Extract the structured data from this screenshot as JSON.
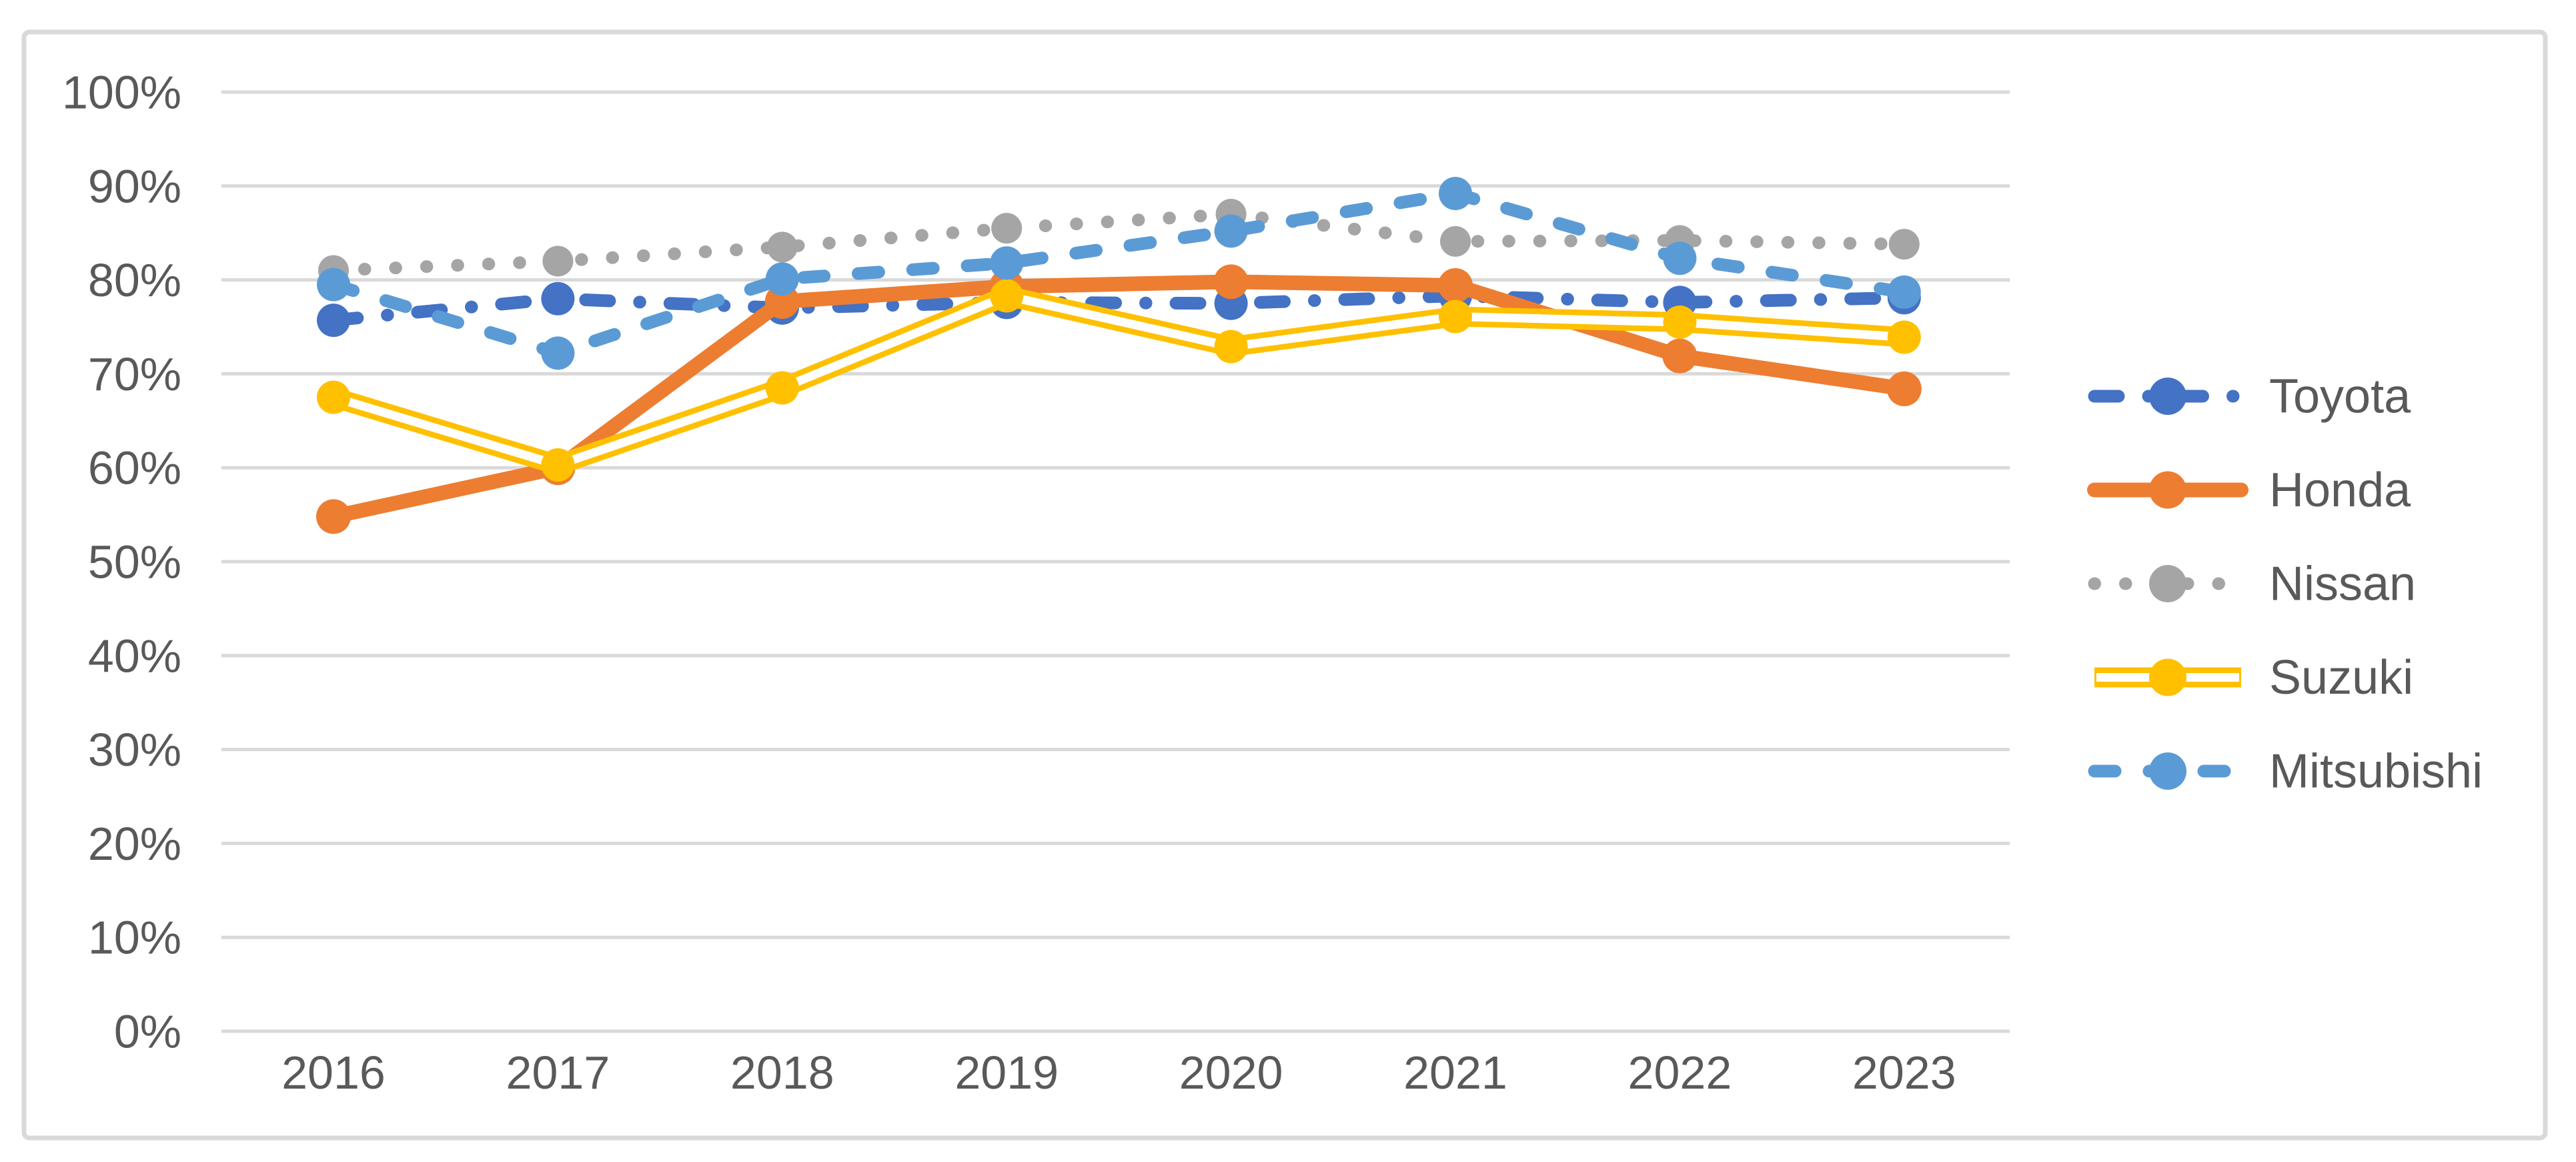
{
  "chart_data": {
    "type": "line",
    "title": "",
    "xlabel": "",
    "ylabel": "",
    "x": [
      "2016",
      "2017",
      "2018",
      "2019",
      "2020",
      "2021",
      "2022",
      "2023"
    ],
    "series": [
      {
        "name": "Toyota",
        "color": "#4472C4",
        "line_style": "long-dash-dot",
        "marker": "circle",
        "values": [
          75.7,
          78.0,
          77.0,
          77.6,
          77.5,
          78.3,
          77.6,
          78.1
        ]
      },
      {
        "name": "Honda",
        "color": "#ED7D31",
        "line_style": "solid",
        "marker": "circle",
        "values": [
          54.8,
          60.0,
          77.7,
          79.3,
          79.8,
          79.4,
          71.9,
          68.4
        ]
      },
      {
        "name": "Nissan",
        "color": "#A5A5A5",
        "line_style": "dotted",
        "marker": "circle",
        "values": [
          81.0,
          82.0,
          83.5,
          85.5,
          87.0,
          84.1,
          84.2,
          83.8
        ]
      },
      {
        "name": "Suzuki",
        "color": "#FFC000",
        "line_style": "double-outline",
        "marker": "circle",
        "values": [
          67.5,
          60.3,
          68.5,
          78.3,
          72.9,
          76.1,
          75.5,
          73.9
        ]
      },
      {
        "name": "Mitsubishi",
        "color": "#5B9BD5",
        "line_style": "dashed",
        "marker": "circle",
        "values": [
          79.5,
          72.2,
          80.1,
          81.8,
          85.2,
          89.2,
          82.3,
          78.7
        ]
      }
    ],
    "ylim": [
      0,
      100
    ],
    "ytick_step": 10,
    "y_tick_labels": [
      "0%",
      "10%",
      "20%",
      "30%",
      "40%",
      "50%",
      "60%",
      "70%",
      "80%",
      "90%",
      "100%"
    ],
    "x_tick_labels": [
      "2016",
      "2017",
      "2018",
      "2019",
      "2020",
      "2021",
      "2022",
      "2023"
    ],
    "grid": true,
    "legend_position": "right",
    "legend_labels": [
      "Toyota",
      "Honda",
      "Nissan",
      "Suzuki",
      "Mitsubishi"
    ]
  },
  "style": {
    "background_color": "#FFFFFF",
    "border_color": "#D9D9D9",
    "gridline_color": "#D9D9D9",
    "tick_label_color": "#595959",
    "legend_text_color": "#595959"
  }
}
